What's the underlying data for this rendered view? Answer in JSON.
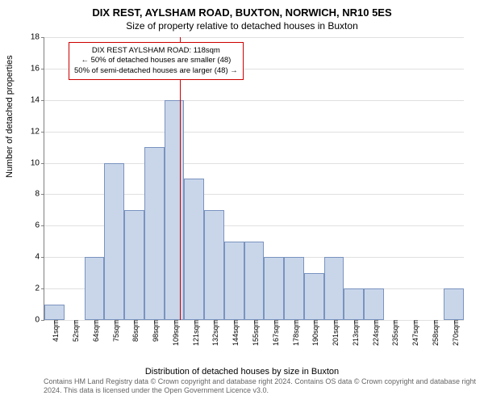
{
  "title": "DIX REST, AYLSHAM ROAD, BUXTON, NORWICH, NR10 5ES",
  "subtitle": "Size of property relative to detached houses in Buxton",
  "ylabel": "Number of detached properties",
  "xlabel": "Distribution of detached houses by size in Buxton",
  "attribution": "Contains HM Land Registry data © Crown copyright and database right 2024.\nContains OS data © Crown copyright and database right 2024. This data is licensed under the Open Government Licence v3.0.",
  "chart": {
    "type": "histogram",
    "ylim": [
      0,
      18
    ],
    "yticks": [
      0,
      2,
      4,
      6,
      8,
      10,
      12,
      14,
      16,
      18
    ],
    "xtick_labels": [
      "41sqm",
      "52sqm",
      "64sqm",
      "75sqm",
      "86sqm",
      "98sqm",
      "109sqm",
      "121sqm",
      "132sqm",
      "144sqm",
      "155sqm",
      "167sqm",
      "178sqm",
      "190sqm",
      "201sqm",
      "213sqm",
      "224sqm",
      "235sqm",
      "247sqm",
      "258sqm",
      "270sqm"
    ],
    "values": [
      1,
      0,
      4,
      10,
      7,
      11,
      14,
      9,
      7,
      5,
      5,
      4,
      4,
      3,
      4,
      2,
      2,
      0,
      0,
      0,
      2
    ],
    "bar_fill": "#c9d6ea",
    "bar_border": "#7a93bf",
    "grid_color": "#e0e0e0",
    "axis_color": "#808080",
    "background_color": "#ffffff",
    "marker": {
      "position_index": 6.8,
      "color": "#cc0000",
      "box": {
        "line1": "DIX REST AYLSHAM ROAD: 118sqm",
        "line2": "← 50% of detached houses are smaller (48)",
        "line3": "50% of semi-detached houses are larger (48) →"
      }
    }
  }
}
